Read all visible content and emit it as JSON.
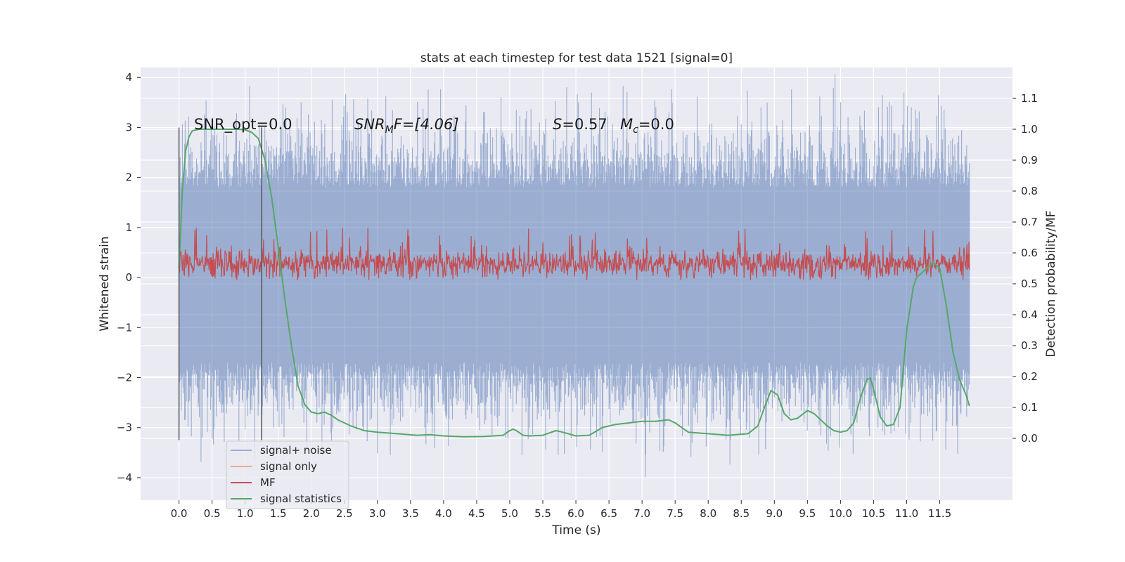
{
  "chart_data": {
    "type": "line",
    "title": "stats at each timestep for test data 1521 [signal=0]",
    "xlabel": "Time (s)",
    "ylabel": "Whitened strain",
    "y2label": "Detection probability/MF",
    "xlim": [
      -0.58,
      12.6
    ],
    "ylim": [
      -4.45,
      4.2
    ],
    "y2lim": [
      -0.2,
      1.2
    ],
    "x_ticks": [
      0.0,
      0.5,
      1.0,
      1.5,
      2.0,
      2.5,
      3.0,
      3.5,
      4.0,
      4.5,
      5.0,
      5.5,
      6.0,
      6.5,
      7.0,
      7.5,
      8.0,
      8.5,
      9.0,
      9.5,
      10.0,
      10.5,
      11.0,
      11.5
    ],
    "x_tick_labels": [
      "0.0",
      "0.5",
      "1.0",
      "1.5",
      "2.0",
      "2.5",
      "3.0",
      "3.5",
      "4.0",
      "4.5",
      "5.0",
      "5.5",
      "6.0",
      "6.5",
      "7.0",
      "7.5",
      "8.0",
      "8.5",
      "9.0",
      "9.5",
      "10.0",
      "10.5",
      "11.0",
      "11.5"
    ],
    "y_ticks": [
      4,
      3,
      2,
      1,
      0,
      -1,
      -2,
      -3,
      -4
    ],
    "y_tick_labels": [
      "4",
      "3",
      "2",
      "1",
      "0",
      "−1",
      "−2",
      "−3",
      "−4"
    ],
    "y2_ticks": [
      1.1,
      1.0,
      0.9,
      0.8,
      0.7,
      0.6,
      0.5,
      0.4,
      0.3,
      0.2,
      0.1,
      0.0
    ],
    "y2_tick_labels": [
      "1.1",
      "1.0",
      "0.9",
      "0.8",
      "0.7",
      "0.6",
      "0.5",
      "0.4",
      "0.3",
      "0.2",
      "0.1",
      "0.0"
    ],
    "grid": true,
    "legend_placement": "bottom-left",
    "legend": [
      {
        "name": "signal+ noise",
        "color": "#4c72b0"
      },
      {
        "name": "signal only",
        "color": "#dd8452"
      },
      {
        "name": "MF",
        "color": "#c44e52"
      },
      {
        "name": "signal statistics",
        "color": "#55a868"
      }
    ],
    "annotations": {
      "snr_opt": "SNR_opt=0.0",
      "snr_mf_prefix": "SNR",
      "snr_mf_sub": "M",
      "snr_mf_suffix": "F=[4.06]",
      "s_label": "S",
      "s_value": "=0.57",
      "mc_label": "M",
      "mc_sub": "c",
      "mc_value": "=0.0"
    },
    "vertical_markers": [
      0.0,
      1.25
    ],
    "series": [
      {
        "name": "signal+ noise",
        "axis": "left",
        "color": "#4c72b0",
        "x_range": [
          0.0,
          11.95
        ],
        "band_typical": [
          -2.1,
          2.3
        ],
        "extreme_range": [
          -3.6,
          3.85
        ]
      },
      {
        "name": "MF",
        "axis": "left",
        "color": "#c44e52",
        "x_range": [
          0.0,
          11.95
        ],
        "band_typical": [
          0.0,
          0.6
        ],
        "extreme_range": [
          -0.05,
          1.0
        ]
      },
      {
        "name": "signal statistics",
        "axis": "right",
        "color": "#55a868",
        "x": [
          0.0,
          0.05,
          0.1,
          0.15,
          0.2,
          0.3,
          0.5,
          0.7,
          0.9,
          1.0,
          1.1,
          1.2,
          1.3,
          1.4,
          1.5,
          1.6,
          1.7,
          1.8,
          1.9,
          2.0,
          2.1,
          2.2,
          2.3,
          2.4,
          2.6,
          2.8,
          3.0,
          3.3,
          3.6,
          3.8,
          4.0,
          4.3,
          4.6,
          4.9,
          5.0,
          5.05,
          5.1,
          5.2,
          5.3,
          5.5,
          5.7,
          5.8,
          6.0,
          6.2,
          6.4,
          6.5,
          6.6,
          6.8,
          7.0,
          7.2,
          7.4,
          7.5,
          7.7,
          8.0,
          8.3,
          8.6,
          8.75,
          8.85,
          8.95,
          9.05,
          9.15,
          9.25,
          9.35,
          9.5,
          9.6,
          9.7,
          9.8,
          9.9,
          10.0,
          10.1,
          10.2,
          10.3,
          10.4,
          10.45,
          10.5,
          10.6,
          10.7,
          10.8,
          10.9,
          11.0,
          11.1,
          11.15,
          11.2,
          11.3,
          11.4,
          11.5,
          11.6,
          11.7,
          11.8,
          11.9,
          11.95
        ],
        "y": [
          0.55,
          0.8,
          0.93,
          0.975,
          0.995,
          1.0,
          1.0,
          1.0,
          1.0,
          0.998,
          0.99,
          0.97,
          0.9,
          0.78,
          0.62,
          0.45,
          0.3,
          0.17,
          0.11,
          0.085,
          0.08,
          0.085,
          0.075,
          0.06,
          0.04,
          0.025,
          0.02,
          0.015,
          0.01,
          0.012,
          0.008,
          0.005,
          0.006,
          0.01,
          0.025,
          0.03,
          0.025,
          0.01,
          0.008,
          0.01,
          0.025,
          0.02,
          0.008,
          0.01,
          0.035,
          0.04,
          0.045,
          0.05,
          0.055,
          0.055,
          0.06,
          0.05,
          0.02,
          0.015,
          0.01,
          0.015,
          0.04,
          0.1,
          0.155,
          0.14,
          0.08,
          0.06,
          0.065,
          0.09,
          0.08,
          0.06,
          0.04,
          0.025,
          0.02,
          0.025,
          0.05,
          0.13,
          0.19,
          0.195,
          0.16,
          0.07,
          0.04,
          0.045,
          0.1,
          0.35,
          0.49,
          0.52,
          0.53,
          0.55,
          0.57,
          0.55,
          0.43,
          0.28,
          0.19,
          0.14,
          0.105
        ]
      }
    ]
  }
}
